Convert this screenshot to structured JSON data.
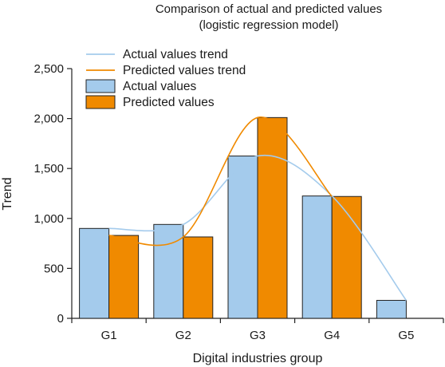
{
  "chart_data": {
    "type": "bar",
    "title": "Comparison of actual and predicted values",
    "subtitle": "(logistic regression model)",
    "xlabel": "Digital industries group",
    "ylabel": "Trend",
    "categories": [
      "G1",
      "G2",
      "G3",
      "G4",
      "G5"
    ],
    "ylim": [
      0,
      2500
    ],
    "yticks": [
      0,
      500,
      1000,
      1500,
      2000,
      2500
    ],
    "ytick_labels": [
      "0",
      "500",
      "1,000",
      "1,500",
      "2,000",
      "2,500"
    ],
    "grid": false,
    "legend_position": "top-left",
    "series": [
      {
        "name": "Actual values",
        "kind": "bar",
        "color": "#a4cbec",
        "values": [
          900,
          940,
          1625,
          1225,
          180
        ]
      },
      {
        "name": "Predicted values",
        "kind": "bar",
        "color": "#f08a00",
        "values": [
          830,
          815,
          2010,
          1220,
          0
        ]
      }
    ],
    "trend_lines": [
      {
        "name": "Actual values trend",
        "color": "#a4cbec",
        "for_series": "Actual values"
      },
      {
        "name": "Predicted values trend",
        "color": "#f08a00",
        "for_series": "Predicted values"
      }
    ],
    "legend": [
      {
        "label": "Actual values trend",
        "marker": "line",
        "color": "#a4cbec"
      },
      {
        "label": "Predicted values trend",
        "marker": "line",
        "color": "#f08a00"
      },
      {
        "label": "Actual values",
        "marker": "box",
        "color": "#a4cbec"
      },
      {
        "label": "Predicted values",
        "marker": "box",
        "color": "#f08a00"
      }
    ]
  }
}
